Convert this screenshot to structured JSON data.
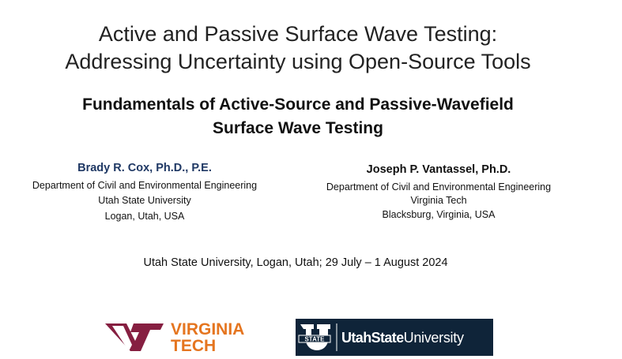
{
  "slide": {
    "title": [
      "Active and Passive Surface Wave Testing:",
      "Addressing Uncertainty using Open-Source Tools"
    ],
    "subtitle": [
      "Fundamentals of Active-Source and Passive-Wavefield",
      "Surface Wave Testing"
    ],
    "authors": [
      {
        "name": "Brady R. Cox, Ph.D., P.E.",
        "lines": [
          "Department of Civil and Environmental Engineering",
          "Utah State University",
          "Logan, Utah, USA"
        ]
      },
      {
        "name": "Joseph P. Vantassel, Ph.D.",
        "lines": [
          "Department of Civil and Environmental Engineering",
          "Virginia Tech",
          "Blacksburg, Virginia, USA"
        ]
      }
    ],
    "event": "Utah State University, Logan, Utah; 29 July – 1 August 2024",
    "logos": {
      "vt": [
        "VIRGINIA",
        "TECH"
      ],
      "usu": {
        "mark": "STATE",
        "bold": "UtahState",
        "regular": "University"
      }
    }
  }
}
